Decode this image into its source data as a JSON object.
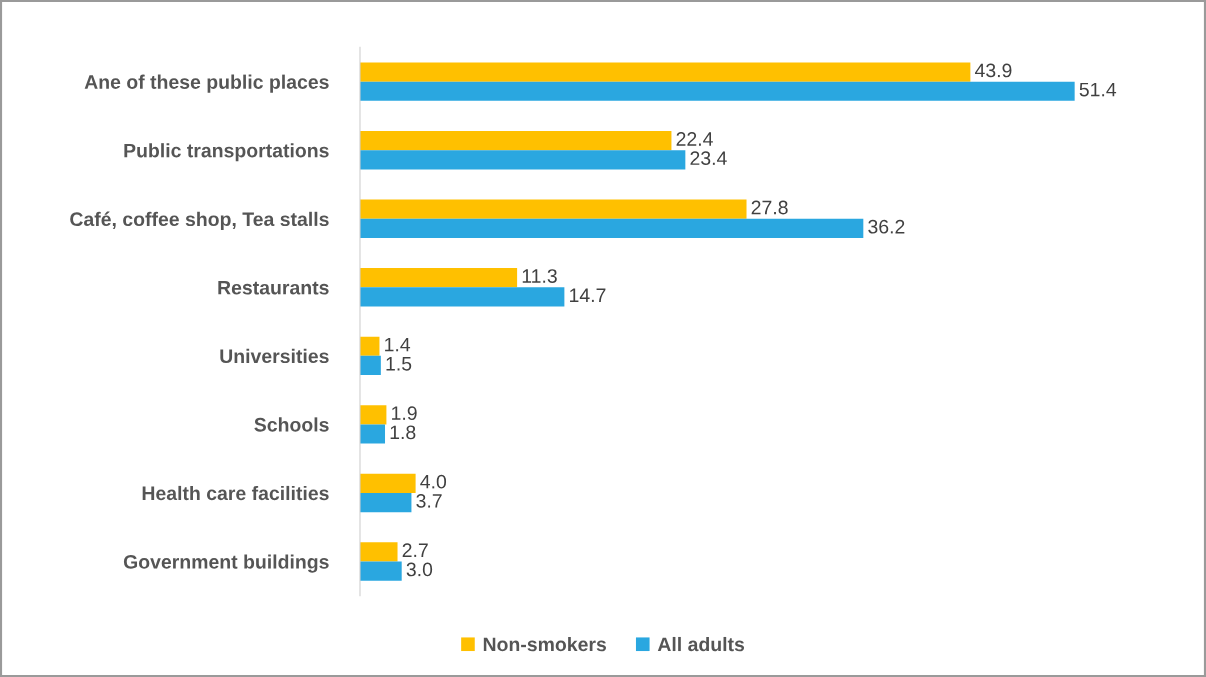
{
  "chart_data": {
    "type": "bar",
    "orientation": "horizontal",
    "categories": [
      "Ane of these public places",
      "Public transportations",
      "Café, coffee shop, Tea stalls",
      "Restaurants",
      "Universities",
      "Schools",
      "Health care facilities",
      "Government buildings"
    ],
    "series": [
      {
        "name": "Non-smokers",
        "color": "#ffc000",
        "values": [
          43.9,
          22.4,
          27.8,
          11.3,
          1.4,
          1.9,
          4.0,
          2.7
        ],
        "value_labels": [
          "43.9",
          "22.4",
          "27.8",
          "11.3",
          "1.4",
          "1.9",
          "4.0",
          "2.7"
        ]
      },
      {
        "name": "All adults",
        "color": "#2aa7e0",
        "values": [
          51.4,
          23.4,
          36.2,
          14.7,
          1.5,
          1.8,
          3.7,
          3.0
        ],
        "value_labels": [
          "51.4",
          "23.4",
          "36.2",
          "14.7",
          "1.5",
          "1.8",
          "3.7",
          "3.0"
        ]
      }
    ],
    "legend": "bottom",
    "grid": false
  }
}
